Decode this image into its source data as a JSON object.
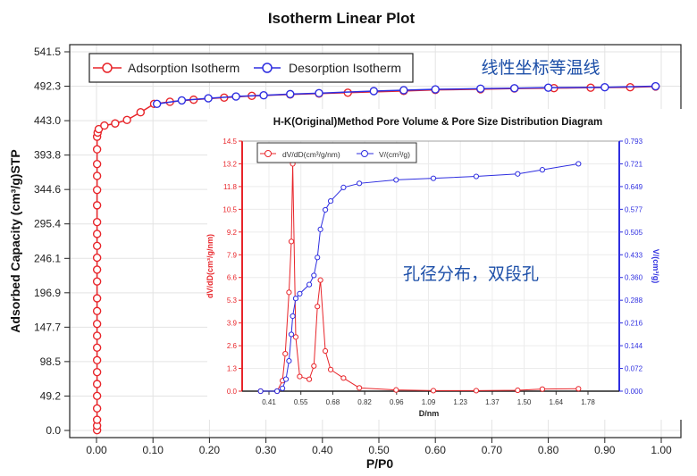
{
  "chart_data": [
    {
      "type": "line",
      "title": "Isotherm Linear Plot",
      "xlabel": "P/P0",
      "ylabel": "Adsorbed Capacity (cm³/g)STP",
      "xlim": [
        -0.05,
        1.03
      ],
      "ylim": [
        0,
        541.5
      ],
      "xticks": [
        "0.00",
        "0.10",
        "0.20",
        "0.30",
        "0.40",
        "0.50",
        "0.60",
        "0.70",
        "0.80",
        "0.90",
        "1.00"
      ],
      "yticks": [
        "0.0",
        "49.2",
        "98.5",
        "147.7",
        "196.9",
        "246.1",
        "295.4",
        "344.6",
        "393.8",
        "443.0",
        "492.3",
        "541.5"
      ],
      "grid": true,
      "legend_position": "top-left",
      "annotation": "线性坐标等温线",
      "series": [
        {
          "name": "Adsorption Isotherm",
          "color": "#e8252a",
          "x": [
            0.001,
            0.001,
            0.001,
            0.001,
            0.001,
            0.001,
            0.001,
            0.001,
            0.001,
            0.001,
            0.001,
            0.001,
            0.001,
            0.001,
            0.001,
            0.001,
            0.001,
            0.001,
            0.001,
            0.001,
            0.001,
            0.001,
            0.001,
            0.001,
            0.001,
            0.002,
            0.004,
            0.014,
            0.033,
            0.054,
            0.078,
            0.102,
            0.13,
            0.172,
            0.226,
            0.275,
            0.343,
            0.394,
            0.445,
            0.544,
            0.6,
            0.68,
            0.74,
            0.81,
            0.875,
            0.945,
            0.99
          ],
          "y": [
            0.4,
            6.8,
            15.3,
            31.5,
            49.4,
            66.4,
            83.4,
            100.5,
            118.4,
            135.4,
            152.4,
            170.8,
            189,
            213,
            230,
            247,
            264,
            281,
            298,
            322,
            344,
            364,
            381,
            402,
            420,
            426,
            431,
            436,
            439,
            444,
            455,
            467,
            470,
            473,
            476,
            478.5,
            480.5,
            481.8,
            483,
            485.5,
            487,
            488,
            489,
            489.6,
            490.2,
            490.8,
            491.8
          ]
        },
        {
          "name": "Desorption Isotherm",
          "color": "#2e2ee0",
          "x": [
            0.99,
            0.9,
            0.8,
            0.74,
            0.68,
            0.6,
            0.544,
            0.491,
            0.394,
            0.343,
            0.296,
            0.247,
            0.198,
            0.151,
            0.107
          ],
          "y": [
            492.3,
            490.8,
            490.2,
            489.4,
            488.8,
            487.8,
            486.6,
            485.3,
            482.3,
            481,
            479.3,
            477.6,
            475,
            472,
            467
          ]
        }
      ]
    },
    {
      "type": "line",
      "title": "H-K(Original)Method Pore Volume & Pore Size Distribution Diagram",
      "xlabel": "D/nm",
      "ylabel_left": "dV/dD(cm³/g/nm)",
      "ylabel_right": "V/(cm³/g)",
      "xticks": [
        "0.41",
        "0.55",
        "0.68",
        "0.82",
        "0.96",
        "1.09",
        "1.23",
        "1.37",
        "1.50",
        "1.64",
        "1.78"
      ],
      "yticks_left": [
        "0.0",
        "1.3",
        "2.6",
        "3.9",
        "5.3",
        "6.6",
        "7.9",
        "9.2",
        "10.5",
        "11.8",
        "13.2",
        "14.5"
      ],
      "yticks_right": [
        "0.000",
        "0.072",
        "0.144",
        "0.216",
        "0.288",
        "0.360",
        "0.433",
        "0.505",
        "0.577",
        "0.649",
        "0.721",
        "0.793"
      ],
      "ylim_left": [
        0,
        14.5
      ],
      "ylim_right": [
        0,
        0.793
      ],
      "legend_position": "top-left",
      "annotation": "孔径分布，双段孔",
      "series": [
        {
          "name": "dV/dD(cm³/g/nm)",
          "axis": "left",
          "color": "#e8252a",
          "x": [
            0.374,
            0.445,
            0.468,
            0.48,
            0.496,
            0.506,
            0.512,
            0.525,
            0.542,
            0.583,
            0.603,
            0.618,
            0.631,
            0.652,
            0.675,
            0.73,
            0.798,
            0.956,
            1.116,
            1.3,
            1.478,
            1.584,
            1.739
          ],
          "y": [
            0,
            0,
            0.61,
            2.17,
            5.73,
            8.68,
            13.18,
            3.14,
            0.85,
            0.69,
            1.46,
            4.91,
            6.44,
            2.33,
            1.25,
            0.76,
            0.19,
            0.07,
            0.03,
            0.03,
            0.05,
            0.12,
            0.14
          ]
        },
        {
          "name": "V/(cm³/g)",
          "axis": "right",
          "color": "#2e2ee0",
          "x": [
            0.374,
            0.445,
            0.468,
            0.483,
            0.496,
            0.506,
            0.512,
            0.525,
            0.542,
            0.583,
            0.603,
            0.618,
            0.631,
            0.652,
            0.675,
            0.73,
            0.798,
            0.956,
            1.116,
            1.3,
            1.478,
            1.584,
            1.739
          ],
          "y": [
            0,
            0,
            0.009,
            0.038,
            0.096,
            0.18,
            0.238,
            0.294,
            0.309,
            0.338,
            0.367,
            0.424,
            0.513,
            0.575,
            0.603,
            0.646,
            0.659,
            0.67,
            0.675,
            0.681,
            0.689,
            0.702,
            0.721
          ]
        }
      ]
    }
  ]
}
